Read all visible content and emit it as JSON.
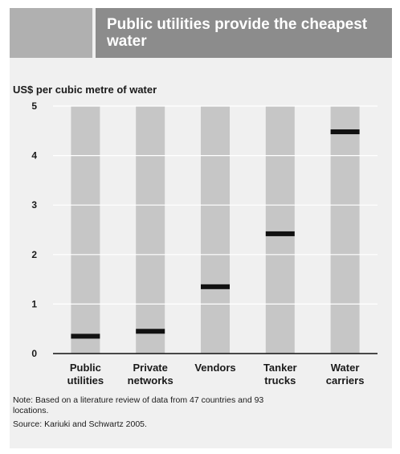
{
  "title": "Public utilities provide the cheapest water",
  "chart_data": {
    "type": "bar",
    "title": "Public utilities provide the cheapest water",
    "ylabel": "US$ per cubic metre of water",
    "xlabel": "",
    "categories": [
      [
        "Public",
        "utilities"
      ],
      [
        "Private",
        "networks"
      ],
      [
        "Vendors"
      ],
      [
        "Tanker",
        "trucks"
      ],
      [
        "Water",
        "carriers"
      ]
    ],
    "values": [
      0.35,
      0.45,
      1.35,
      2.42,
      4.48
    ],
    "ylim": [
      0,
      5
    ],
    "yticks": [
      0,
      1,
      2,
      3,
      4,
      5
    ],
    "grid": true,
    "colors": {
      "marker": "#111111",
      "column": "#c6c6c6",
      "gridline": "#ffffff",
      "title_bg": "#8c8c8c",
      "tab_bg": "#b0b0b0",
      "panel_bg": "#f0f0f0"
    }
  },
  "note": "Note: Based on a literature review of data from 47 countries and 93 locations.",
  "source": "Source: Kariuki and Schwartz 2005."
}
